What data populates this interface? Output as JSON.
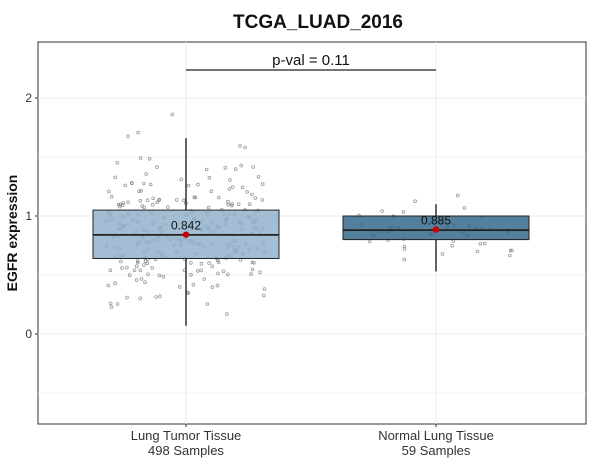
{
  "chart_data": {
    "type": "box",
    "title": "TCGA_LUAD_2016",
    "xlabel": "",
    "ylabel": "EGFR expression",
    "ylim": [
      -0.72,
      2.1
    ],
    "yticks": [
      0,
      1,
      2
    ],
    "grid": true,
    "categories": [
      {
        "name": "Lung Tumor Tissue",
        "samples_label": "498  Samples"
      },
      {
        "name": "Normal Lung Tissue",
        "samples_label": "59  Samples"
      }
    ],
    "boxes": [
      {
        "category": "Lung Tumor Tissue",
        "whisker_low": 0.07,
        "q1": 0.64,
        "median": 0.84,
        "q3": 1.05,
        "whisker_high": 1.66,
        "mean": 0.842,
        "mean_label": "0.842",
        "n": 498,
        "color": "#8fb0cb"
      },
      {
        "category": "Normal Lung Tissue",
        "whisker_low": 0.53,
        "q1": 0.8,
        "median": 0.88,
        "q3": 1.0,
        "whisker_high": 1.1,
        "mean": 0.885,
        "mean_label": "0.885",
        "n": 59,
        "color": "#2d6486"
      }
    ],
    "comparison": {
      "between": [
        "Lung Tumor Tissue",
        "Normal Lung Tissue"
      ],
      "label": "p-val = 0.11"
    },
    "colors": {
      "mean_marker": "#cc0000",
      "points": "#777777",
      "box_edge": "#222222",
      "grid": "#ebebeb"
    }
  }
}
